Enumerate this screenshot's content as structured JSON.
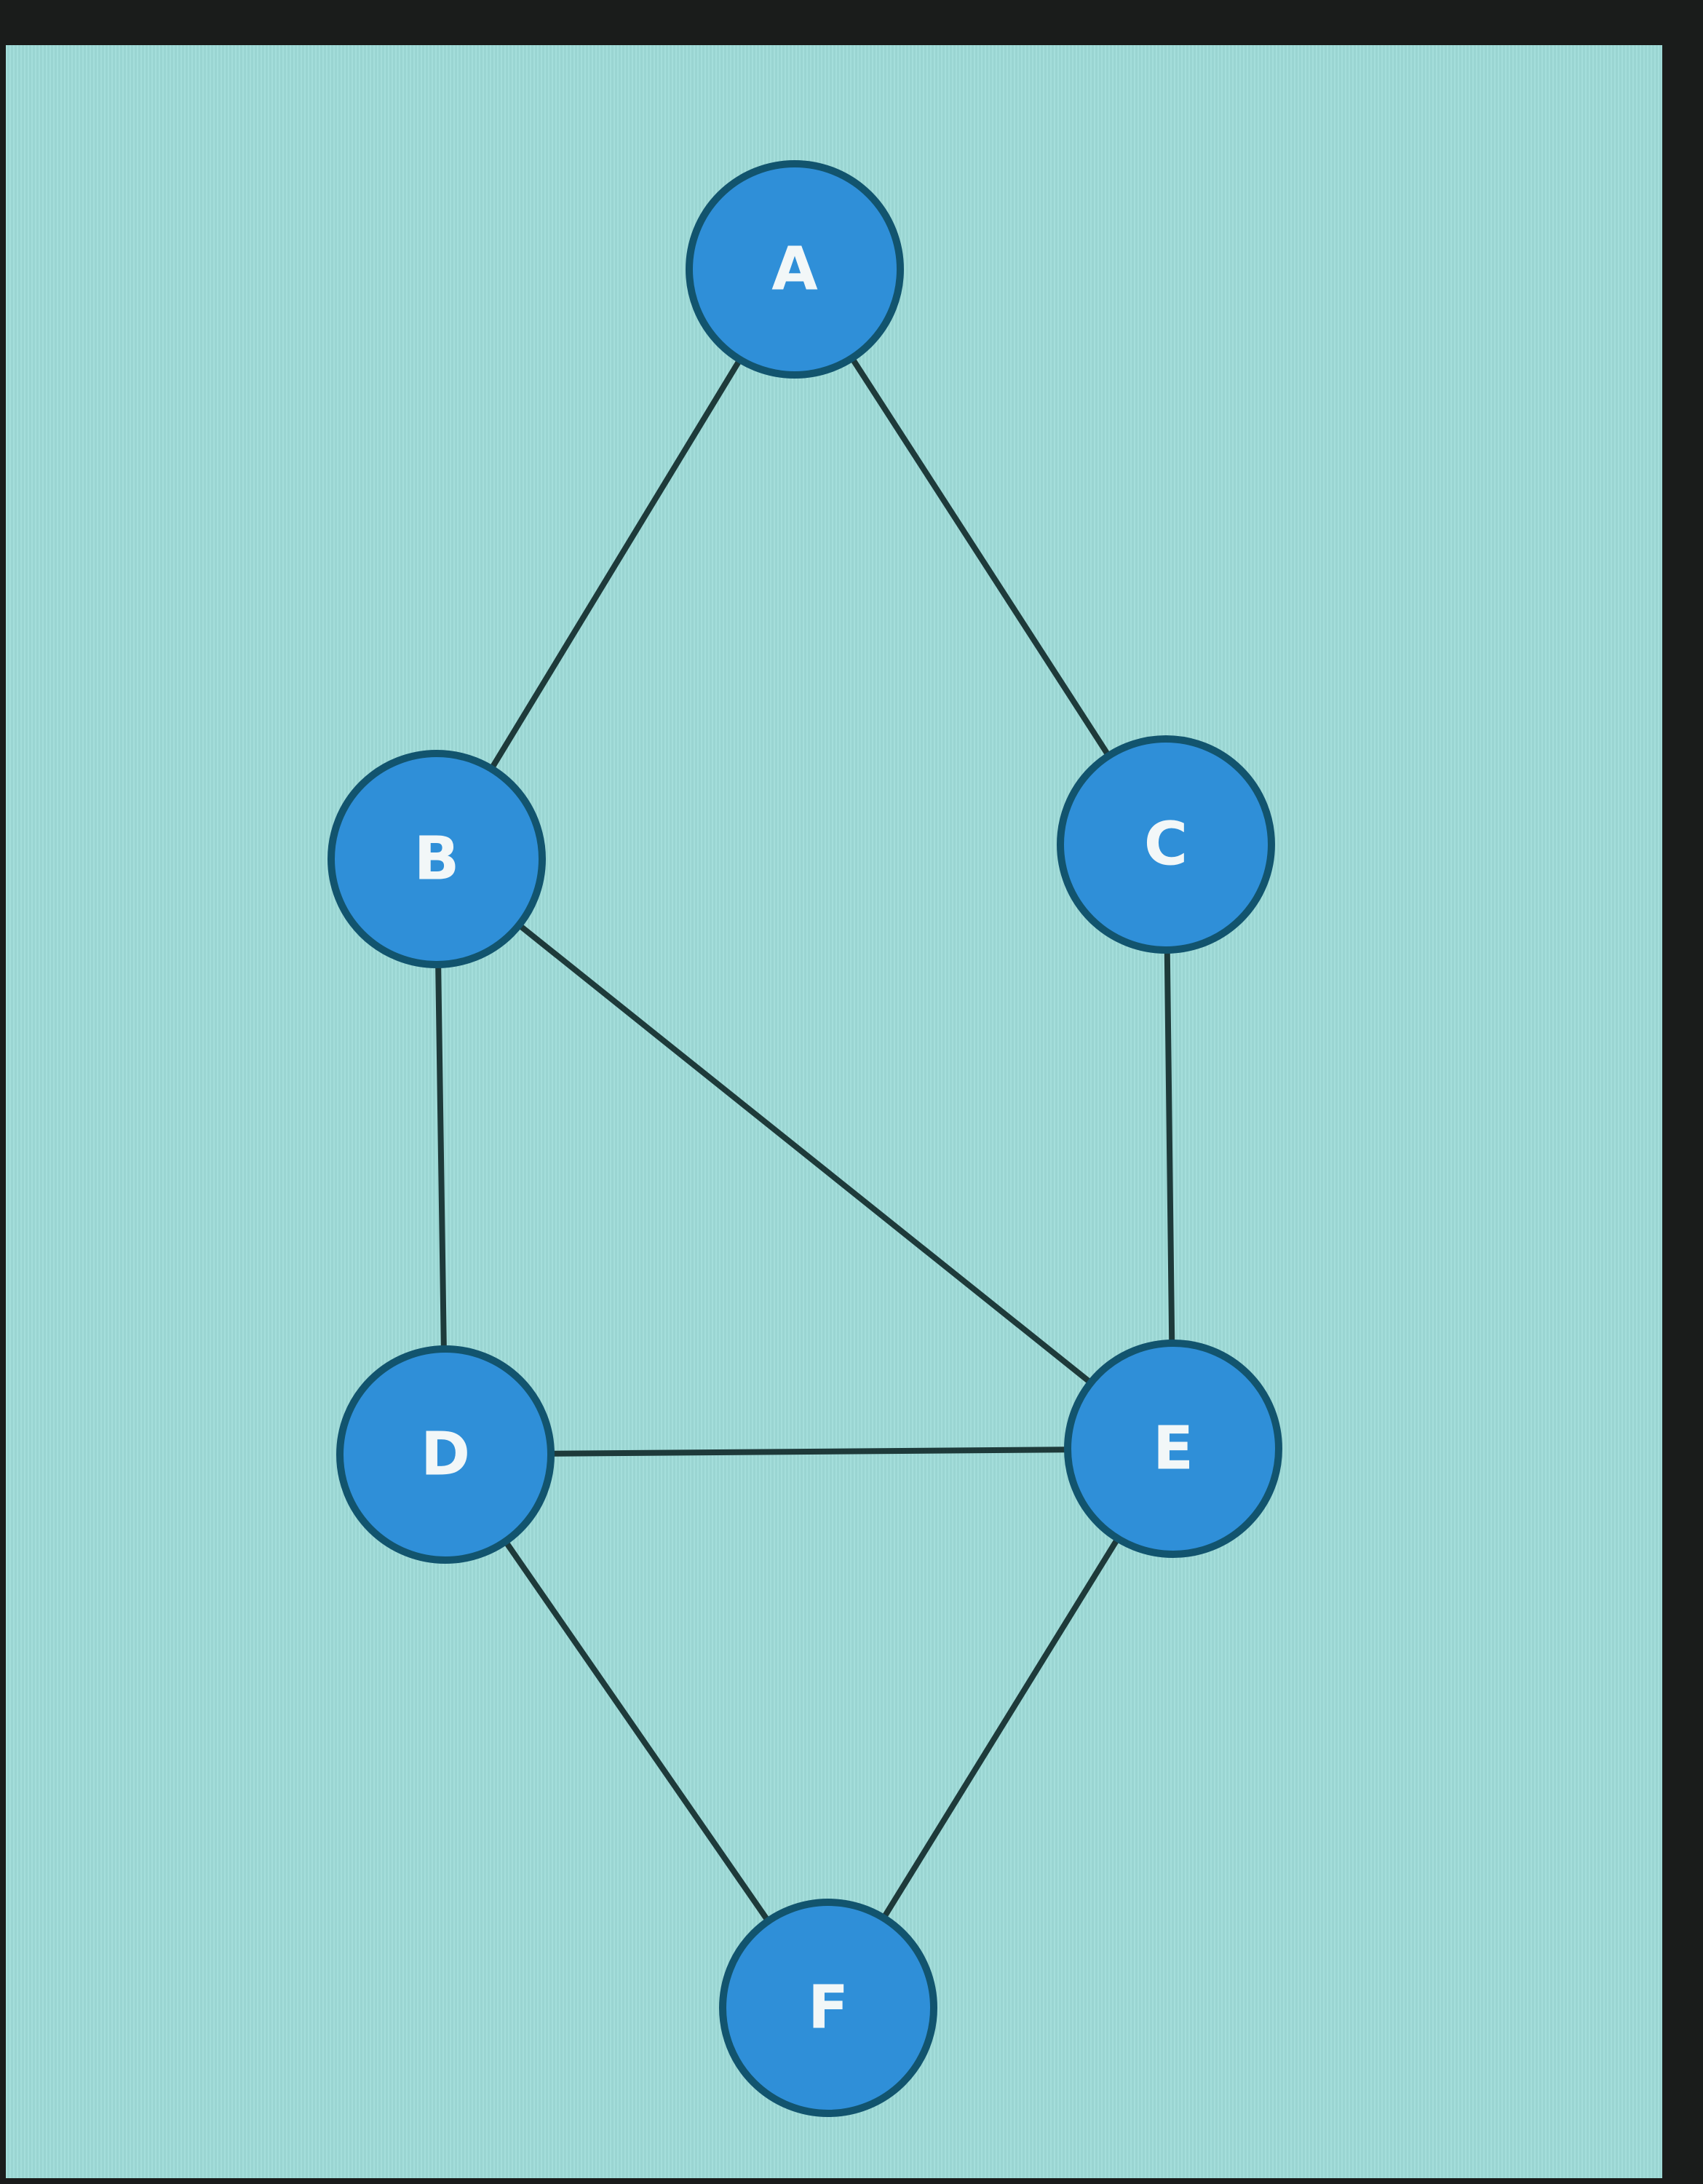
{
  "colors": {
    "background": "#9fdcd9",
    "node_fill": "#2f8fd8",
    "node_stroke": "#12546e",
    "edge": "#1e3a3a",
    "label": "#f2f7f8",
    "bezel": "#1a1c1b"
  },
  "nodes": [
    {
      "id": "A",
      "label": "A"
    },
    {
      "id": "B",
      "label": "B"
    },
    {
      "id": "C",
      "label": "C"
    },
    {
      "id": "D",
      "label": "D"
    },
    {
      "id": "E",
      "label": "E"
    },
    {
      "id": "F",
      "label": "F"
    }
  ],
  "edges": [
    {
      "from": "A",
      "to": "B"
    },
    {
      "from": "A",
      "to": "C"
    },
    {
      "from": "B",
      "to": "D"
    },
    {
      "from": "B",
      "to": "E"
    },
    {
      "from": "C",
      "to": "E"
    },
    {
      "from": "D",
      "to": "E"
    },
    {
      "from": "D",
      "to": "F"
    },
    {
      "from": "E",
      "to": "F"
    }
  ]
}
